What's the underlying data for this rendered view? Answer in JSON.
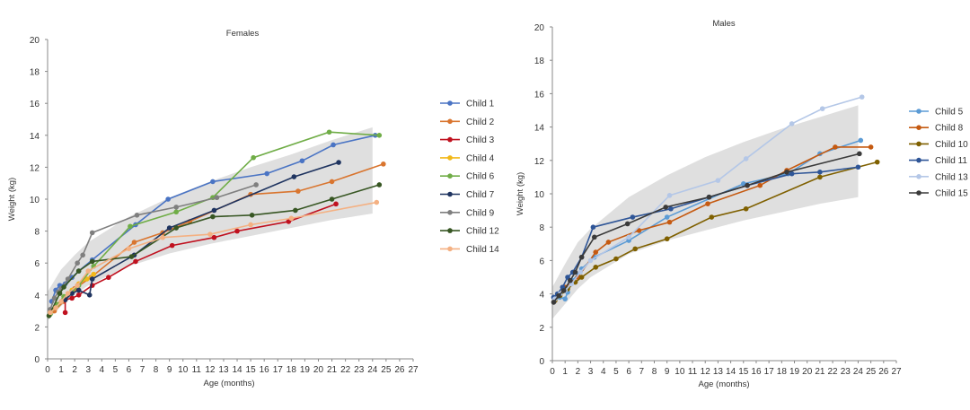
{
  "chart_data": [
    {
      "type": "line",
      "title": "Females",
      "xlabel": "Age (months)",
      "ylabel": "Weight (kg)",
      "xlim": [
        0,
        27
      ],
      "ylim": [
        0,
        20
      ],
      "xticks": [
        0,
        1,
        2,
        3,
        4,
        5,
        6,
        7,
        8,
        9,
        10,
        11,
        12,
        13,
        14,
        15,
        16,
        17,
        18,
        19,
        20,
        21,
        22,
        23,
        24,
        25,
        26,
        27
      ],
      "yticks": [
        0,
        2,
        4,
        6,
        8,
        10,
        12,
        14,
        16,
        18,
        20
      ],
      "legend": "right",
      "reference_band": {
        "x": [
          0,
          1,
          2,
          3,
          6,
          9,
          12,
          15,
          18,
          21,
          24
        ],
        "lower": [
          2.4,
          3.3,
          4.0,
          4.6,
          5.8,
          6.6,
          7.2,
          7.7,
          8.2,
          8.7,
          9.1
        ],
        "upper": [
          4.2,
          5.6,
          6.5,
          7.3,
          8.9,
          10.1,
          11.1,
          12.0,
          12.8,
          13.7,
          14.5
        ]
      },
      "series": [
        {
          "name": "Child 1",
          "color": "#4a74c4",
          "x": [
            0.3,
            0.6,
            0.9,
            1.3,
            1.8,
            2.3,
            3.3,
            6.5,
            8.9,
            12.2,
            16.2,
            18.8,
            21.1,
            24.2
          ],
          "y": [
            3.6,
            4.3,
            4.6,
            4.7,
            5.1,
            5.5,
            6.2,
            8.4,
            10.0,
            11.1,
            11.6,
            12.4,
            13.4,
            14.0
          ]
        },
        {
          "name": "Child 2",
          "color": "#d9752f",
          "x": [
            0.5,
            1.2,
            2.0,
            3.2,
            6.4,
            8.5,
            10.5,
            15.0,
            18.5,
            21.0,
            24.8
          ],
          "y": [
            3.0,
            3.6,
            4.4,
            5.1,
            7.3,
            7.9,
            8.6,
            10.3,
            10.5,
            11.1,
            12.2
          ]
        },
        {
          "name": "Child 3",
          "color": "#c0111f",
          "x": [
            1.3,
            1.3,
            1.8,
            2.3,
            3.3,
            4.5,
            6.5,
            9.2,
            12.3,
            14.0,
            17.8,
            21.3
          ],
          "y": [
            2.9,
            3.7,
            3.8,
            4.0,
            4.6,
            5.1,
            6.1,
            7.1,
            7.6,
            8.0,
            8.6,
            9.7
          ]
        },
        {
          "name": "Child 4",
          "color": "#f2b818",
          "x": [
            0.2,
            0.7,
            1.2,
            1.8,
            2.3,
            2.9,
            3.4
          ],
          "y": [
            2.9,
            3.4,
            3.9,
            4.3,
            4.7,
            5.0,
            5.3
          ]
        },
        {
          "name": "Child 6",
          "color": "#70ad47",
          "x": [
            0.2,
            0.7,
            1.2,
            1.8,
            2.3,
            3.4,
            6.1,
            9.5,
            12.2,
            15.2,
            20.8,
            24.5
          ],
          "y": [
            2.8,
            3.4,
            3.9,
            4.2,
            4.6,
            5.8,
            8.3,
            9.2,
            10.1,
            12.6,
            14.2,
            14.0
          ]
        },
        {
          "name": "Child 7",
          "color": "#1f3460",
          "x": [
            1.3,
            1.8,
            2.3,
            3.1,
            3.3,
            6.4,
            9.0,
            12.3,
            18.2,
            21.5
          ],
          "y": [
            3.7,
            4.1,
            4.3,
            4.0,
            5.0,
            6.5,
            8.2,
            9.3,
            11.4,
            12.3
          ]
        },
        {
          "name": "Child 9",
          "color": "#7f7f7f",
          "x": [
            0.2,
            0.5,
            0.8,
            1.0,
            1.5,
            2.2,
            2.6,
            3.3,
            6.6,
            9.5,
            12.5,
            15.4
          ],
          "y": [
            3.1,
            3.8,
            4.2,
            4.4,
            5.0,
            6.0,
            6.5,
            7.9,
            9.0,
            9.5,
            10.1,
            10.9
          ]
        },
        {
          "name": "Child 12",
          "color": "#375623",
          "x": [
            0.1,
            0.9,
            1.2,
            2.3,
            3.3,
            6.2,
            9.5,
            12.2,
            15.1,
            18.3,
            21.0,
            24.5
          ],
          "y": [
            2.7,
            4.1,
            4.5,
            5.5,
            6.1,
            6.4,
            8.2,
            8.9,
            9.0,
            9.3,
            10.0,
            10.9
          ]
        },
        {
          "name": "Child 14",
          "color": "#f4b183",
          "x": [
            0.2,
            0.6,
            1.0,
            1.5,
            2.2,
            3.0,
            6.0,
            8.5,
            12.0,
            15.0,
            18.0,
            24.3
          ],
          "y": [
            2.9,
            3.2,
            3.6,
            4.1,
            4.6,
            5.5,
            6.9,
            7.6,
            7.8,
            8.4,
            8.8,
            9.8
          ]
        }
      ]
    },
    {
      "type": "line",
      "title": "Males",
      "xlabel": "Age (months)",
      "ylabel": "Weight (kg)",
      "xlim": [
        0,
        27
      ],
      "ylim": [
        0,
        20
      ],
      "xticks": [
        0,
        1,
        2,
        3,
        4,
        5,
        6,
        7,
        8,
        9,
        10,
        11,
        12,
        13,
        14,
        15,
        16,
        17,
        18,
        19,
        20,
        21,
        22,
        23,
        24,
        25,
        26,
        27
      ],
      "yticks": [
        0,
        2,
        4,
        6,
        8,
        10,
        12,
        14,
        16,
        18,
        20
      ],
      "legend": "right",
      "reference_band": {
        "x": [
          0,
          1,
          2,
          3,
          6,
          9,
          12,
          15,
          18,
          21,
          24
        ],
        "lower": [
          2.5,
          3.4,
          4.3,
          5.0,
          6.4,
          7.2,
          7.8,
          8.4,
          8.9,
          9.4,
          9.8
        ],
        "upper": [
          4.4,
          5.8,
          7.1,
          7.9,
          9.8,
          11.1,
          12.2,
          13.1,
          13.9,
          14.6,
          15.3
        ]
      },
      "series": [
        {
          "name": "Child 5",
          "color": "#5b9bd5",
          "x": [
            0.2,
            0.6,
            1.0,
            1.2,
            1.6,
            2.3,
            3.3,
            6.0,
            9.0,
            15.0,
            18.5,
            21.0,
            24.2
          ],
          "y": [
            3.6,
            3.8,
            3.7,
            4.1,
            4.8,
            5.5,
            6.2,
            7.2,
            8.6,
            10.6,
            11.2,
            12.4,
            13.2
          ]
        },
        {
          "name": "Child 8",
          "color": "#c55a11",
          "x": [
            0.2,
            0.6,
            1.0,
            1.5,
            2.0,
            3.4,
            4.4,
            6.8,
            9.2,
            12.2,
            16.3,
            18.4,
            22.2,
            25.0
          ],
          "y": [
            3.6,
            4.0,
            4.4,
            4.7,
            5.0,
            6.5,
            7.1,
            7.8,
            8.3,
            9.4,
            10.5,
            11.4,
            12.8,
            12.8
          ]
        },
        {
          "name": "Child 10",
          "color": "#7f6000",
          "x": [
            0.2,
            0.6,
            1.2,
            1.8,
            2.3,
            3.4,
            5.0,
            6.5,
            9.0,
            12.5,
            15.2,
            21.0,
            25.5
          ],
          "y": [
            3.6,
            3.9,
            4.3,
            4.7,
            5.0,
            5.6,
            6.1,
            6.7,
            7.3,
            8.6,
            9.1,
            11.0,
            11.9
          ]
        },
        {
          "name": "Child 11",
          "color": "#2e5597",
          "x": [
            0.1,
            0.4,
            0.8,
            1.2,
            1.6,
            2.3,
            3.2,
            6.3,
            9.3,
            12.3,
            15.3,
            18.8,
            21.0,
            24.0
          ],
          "y": [
            3.8,
            4.0,
            4.4,
            5.0,
            5.3,
            6.2,
            8.0,
            8.6,
            9.1,
            9.8,
            10.5,
            11.2,
            11.3,
            11.6
          ]
        },
        {
          "name": "Child 13",
          "color": "#b4c7e7",
          "x": [
            0.2,
            0.6,
            1.0,
            1.5,
            2.2,
            3.0,
            6.0,
            9.2,
            13.0,
            15.2,
            18.8,
            21.2,
            24.3
          ],
          "y": [
            3.7,
            4.0,
            4.2,
            4.6,
            5.3,
            6.0,
            7.4,
            9.9,
            10.8,
            12.1,
            14.2,
            15.1,
            15.8
          ]
        },
        {
          "name": "Child 15",
          "color": "#3a3a3a",
          "x": [
            0.1,
            0.5,
            0.9,
            1.4,
            1.8,
            2.3,
            3.3,
            5.9,
            8.9,
            12.3,
            15.3,
            18.4,
            24.1
          ],
          "y": [
            3.5,
            3.9,
            4.2,
            4.8,
            5.3,
            6.2,
            7.4,
            8.2,
            9.2,
            9.8,
            10.5,
            11.3,
            12.4
          ]
        }
      ]
    }
  ]
}
